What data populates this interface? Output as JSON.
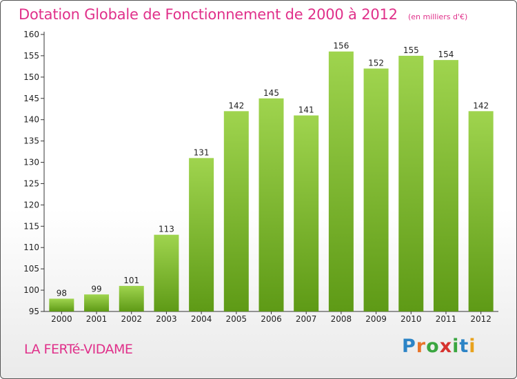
{
  "title": "Dotation Globale de Fonctionnement de 2000 à 2012",
  "unit_note": "(en milliers d'€)",
  "commune": "LA FERTé-VIDAME",
  "logo": {
    "text": "Proxiti",
    "letters": [
      "P",
      "r",
      "o",
      "x",
      "i",
      "t",
      "i"
    ],
    "colors": [
      "#2c84c6",
      "#e8742a",
      "#3aa640",
      "#d6322e",
      "#3aa640",
      "#2c84c6",
      "#e8a21d"
    ]
  },
  "colors": {
    "bar_top": "#9fd44e",
    "bar_bottom": "#5e9a16",
    "title": "#e0308a"
  },
  "chart_data": {
    "type": "bar",
    "title": "Dotation Globale de Fonctionnement de 2000 à 2012",
    "subtitle": "(en milliers d'€)",
    "categories": [
      "2000",
      "2001",
      "2002",
      "2003",
      "2004",
      "2005",
      "2006",
      "2007",
      "2008",
      "2009",
      "2010",
      "2011",
      "2012"
    ],
    "values": [
      98,
      99,
      101,
      113,
      131,
      142,
      145,
      141,
      156,
      152,
      155,
      154,
      142
    ],
    "ylim": [
      95,
      160
    ],
    "yticks": [
      95,
      100,
      105,
      110,
      115,
      120,
      125,
      130,
      135,
      140,
      145,
      150,
      155,
      160
    ],
    "grid": false,
    "xlabel": "",
    "ylabel": ""
  }
}
